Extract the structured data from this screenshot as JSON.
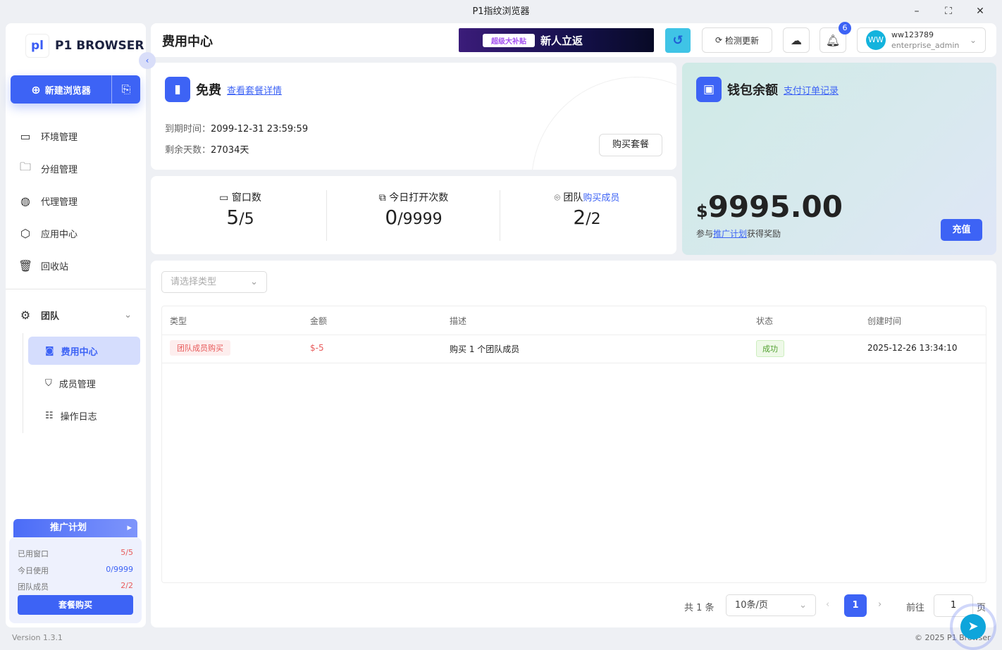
{
  "window": {
    "title": "P1指纹浏览器"
  },
  "sidebar": {
    "logo_text": "P1 BROWSER",
    "new_browser": "新建浏览器",
    "items": [
      {
        "label": "环境管理",
        "icon": "window-icon"
      },
      {
        "label": "分组管理",
        "icon": "folder-icon"
      },
      {
        "label": "代理管理",
        "icon": "proxy-icon"
      },
      {
        "label": "应用中心",
        "icon": "cube-icon"
      },
      {
        "label": "回收站",
        "icon": "trash-icon"
      }
    ],
    "team": {
      "label": "团队",
      "sub": [
        {
          "label": "费用中心",
          "active": true
        },
        {
          "label": "成员管理"
        },
        {
          "label": "操作日志"
        }
      ]
    },
    "promo": {
      "title": "推广计划",
      "rows": [
        {
          "label": "已用窗口",
          "value": "5/5",
          "color": "#e85a5a"
        },
        {
          "label": "今日使用",
          "value": "0/9999",
          "color": "#3d63f5"
        },
        {
          "label": "团队成员",
          "value": "2/2",
          "color": "#e85a5a"
        }
      ],
      "button": "套餐购买"
    },
    "version": "Version 1.3.1"
  },
  "header": {
    "title": "费用中心",
    "banner_tag": "超级大补贴",
    "banner_text": "新人立返",
    "check_update": "检测更新",
    "notif_count": "6",
    "user": {
      "avatar": "WW",
      "name": "ww123789",
      "role": "enterprise_admin"
    }
  },
  "plan": {
    "name": "免费",
    "details_link": "查看套餐详情",
    "expire_label": "到期时间：",
    "expire_value": "2099-12-31 23:59:59",
    "remain_label": "剩余天数：",
    "remain_value": "27034天",
    "buy": "购买套餐"
  },
  "stats": [
    {
      "label": "窗口数",
      "used": "5",
      "total": "/5"
    },
    {
      "label": "今日打开次数",
      "used": "0",
      "total": "/9999"
    },
    {
      "label": "团队",
      "link": "购买成员",
      "used": "2",
      "total": "/2"
    }
  ],
  "wallet": {
    "title": "钱包余额",
    "orders_link": "支付订单记录",
    "currency": "$",
    "amount": "9995.00",
    "promo_pre": "参与",
    "promo_link": "推广计划",
    "promo_post": "获得奖励",
    "recharge": "充值"
  },
  "filter": {
    "placeholder": "请选择类型"
  },
  "table": {
    "columns": [
      "类型",
      "金额",
      "描述",
      "状态",
      "创建时间"
    ],
    "rows": [
      {
        "type": "团队成员购买",
        "amount": "$-5",
        "desc": "购买 1 个团队成员",
        "status": "成功",
        "created": "2025-12-26 13:34:10"
      }
    ]
  },
  "pagination": {
    "total": "共 1 条",
    "page_size": "10条/页",
    "current": "1",
    "goto_label": "前往",
    "goto_value": "1",
    "page_suffix": "页"
  },
  "footer": {
    "copyright": "© 2025 P1 Browser"
  },
  "colors": {
    "accent": "#3d63f5",
    "danger": "#e85a5a",
    "success": "#52c41a"
  }
}
